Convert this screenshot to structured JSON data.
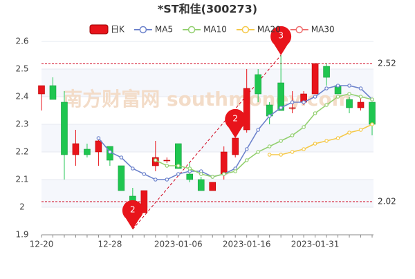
{
  "chart_data": {
    "type": "candlestick",
    "title": "*ST和佳(300273)",
    "candle_name": "日K",
    "up_color": "#e8141b",
    "down_color": "#1fc650",
    "categories": [
      "12-20",
      null,
      null,
      null,
      null,
      null,
      "12-28",
      null,
      null,
      null,
      null,
      null,
      "2023-01-06",
      null,
      null,
      null,
      null,
      null,
      "2023-01-16",
      null,
      null,
      null,
      null,
      null,
      "2023-01-31",
      null,
      null,
      null,
      null,
      null
    ],
    "open": [
      2.41,
      2.44,
      2.38,
      2.19,
      2.21,
      2.2,
      2.22,
      2.15,
      2.04,
      1.98,
      2.15,
      2.17,
      2.23,
      2.12,
      2.1,
      2.06,
      2.12,
      2.19,
      2.28,
      2.48,
      2.37,
      2.45,
      2.36,
      2.38,
      2.41,
      2.51,
      2.44,
      2.39,
      2.36,
      2.38
    ],
    "high": [
      2.44,
      2.47,
      2.42,
      2.28,
      2.23,
      2.25,
      2.22,
      2.15,
      2.07,
      2.06,
      2.24,
      2.18,
      2.23,
      2.16,
      2.11,
      2.09,
      2.22,
      2.25,
      2.5,
      2.5,
      2.38,
      2.55,
      2.42,
      2.42,
      2.52,
      2.52,
      2.44,
      2.4,
      2.4,
      2.38
    ],
    "low": [
      2.35,
      2.39,
      2.1,
      2.15,
      2.18,
      2.15,
      2.15,
      2.06,
      1.92,
      1.98,
      2.13,
      2.16,
      2.14,
      2.09,
      2.06,
      2.06,
      2.1,
      2.18,
      2.27,
      2.38,
      2.3,
      2.35,
      2.34,
      2.37,
      2.41,
      2.44,
      2.41,
      2.34,
      2.35,
      2.26
    ],
    "close": [
      2.44,
      2.39,
      2.19,
      2.23,
      2.19,
      2.24,
      2.17,
      2.06,
      2.0,
      2.06,
      2.18,
      2.17,
      2.14,
      2.1,
      2.06,
      2.09,
      2.2,
      2.25,
      2.43,
      2.41,
      2.33,
      2.35,
      2.36,
      2.41,
      2.52,
      2.47,
      2.41,
      2.36,
      2.38,
      2.3
    ],
    "series": [
      {
        "name": "MA5",
        "color": "#6d83cc",
        "values": [
          null,
          null,
          null,
          null,
          null,
          2.25,
          2.2,
          2.18,
          2.14,
          2.12,
          2.1,
          2.1,
          2.12,
          2.13,
          2.13,
          2.11,
          2.12,
          2.14,
          2.21,
          2.28,
          2.33,
          2.36,
          2.38,
          2.38,
          2.4,
          2.43,
          2.44,
          2.44,
          2.43,
          2.39
        ]
      },
      {
        "name": "MA10",
        "color": "#93d070",
        "values": [
          null,
          null,
          null,
          null,
          null,
          null,
          null,
          null,
          null,
          null,
          2.17,
          2.15,
          2.15,
          2.14,
          2.12,
          2.11,
          2.12,
          2.13,
          2.17,
          2.2,
          2.22,
          2.24,
          2.26,
          2.29,
          2.34,
          2.37,
          2.4,
          2.41,
          2.4,
          2.39
        ]
      },
      {
        "name": "MA20",
        "color": "#f5c94a",
        "values": [
          null,
          null,
          null,
          null,
          null,
          null,
          null,
          null,
          null,
          null,
          null,
          null,
          null,
          null,
          null,
          null,
          null,
          null,
          null,
          null,
          2.19,
          2.19,
          2.2,
          2.21,
          2.23,
          2.24,
          2.25,
          2.27,
          2.28,
          2.3
        ]
      },
      {
        "name": "MA30",
        "color": "#ef6f6f",
        "values": [
          null,
          null,
          null,
          null,
          null,
          null,
          null,
          null,
          null,
          null,
          null,
          null,
          null,
          null,
          null,
          null,
          null,
          null,
          null,
          null,
          null,
          null,
          null,
          null,
          null,
          null,
          null,
          null,
          null,
          null
        ]
      }
    ],
    "ylim": [
      1.9,
      2.6
    ],
    "yticks": [
      1.9,
      2,
      2.1,
      2.2,
      2.3,
      2.4,
      2.5,
      2.6
    ],
    "hlines": [
      2.52,
      2.02
    ],
    "trendline": {
      "from": [
        8,
        1.92
      ],
      "to": [
        21,
        2.55
      ]
    },
    "annotations": [
      {
        "candle": 8,
        "value": 1.92,
        "label": "2"
      },
      {
        "candle": 17,
        "value": 2.25,
        "label": "2"
      },
      {
        "candle": 21,
        "value": 2.55,
        "label": "3"
      }
    ],
    "watermark": "南方财富网 southmoney.com"
  }
}
